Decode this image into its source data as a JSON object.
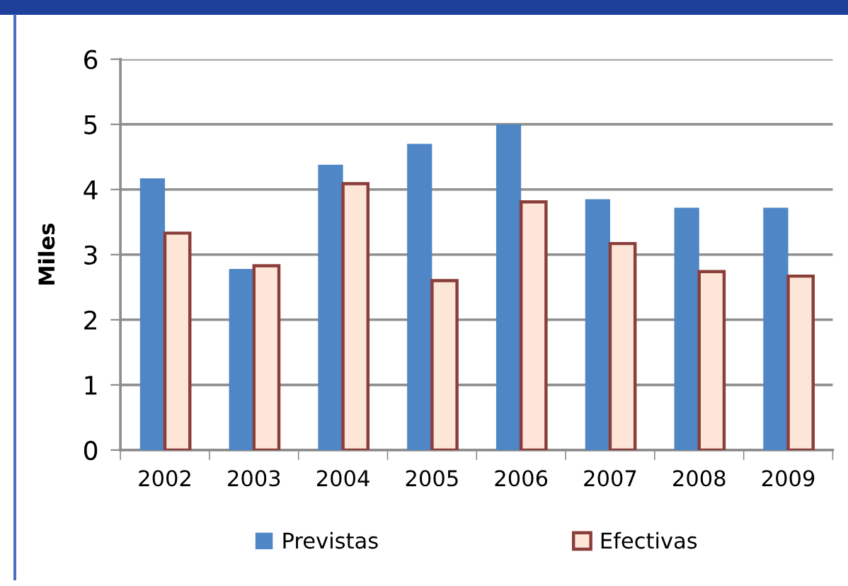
{
  "chart_data": {
    "type": "bar",
    "ylabel": "Miles",
    "categories": [
      "2002",
      "2003",
      "2004",
      "2005",
      "2006",
      "2007",
      "2008",
      "2009"
    ],
    "series": [
      {
        "name": "Previstas",
        "color": "#4f86c6",
        "values": [
          4.17,
          2.78,
          4.38,
          4.7,
          5.0,
          3.85,
          3.72,
          3.72
        ]
      },
      {
        "name": "Efectivas",
        "color": "#fde6d8",
        "values": [
          3.33,
          2.83,
          4.09,
          2.6,
          3.81,
          3.17,
          2.74,
          2.67
        ]
      }
    ],
    "ylim": [
      0,
      6
    ],
    "yticks": [
      0,
      1,
      2,
      3,
      4,
      5,
      6
    ],
    "grid": "y",
    "legend": "bottom"
  }
}
